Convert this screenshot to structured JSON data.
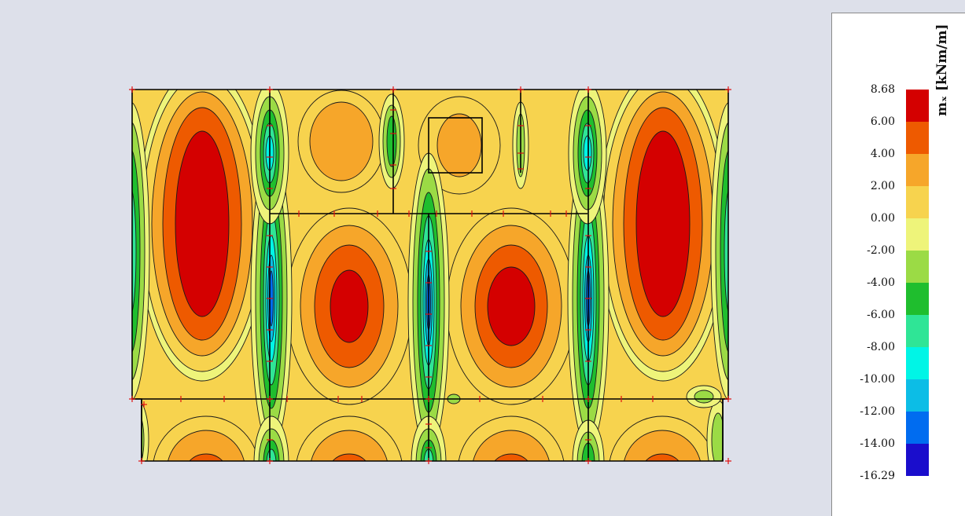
{
  "chart_data": {
    "type": "heatmap",
    "title": "",
    "legend": {
      "quantity": "mₓ [kNm/m]",
      "placement": "right",
      "tick_labels": [
        "8.68",
        "6.00",
        "4.00",
        "2.00",
        "0.00",
        "-2.00",
        "-4.00",
        "-6.00",
        "-8.00",
        "-10.00",
        "-12.00",
        "-14.00",
        "-16.29"
      ],
      "bands": [
        {
          "from": 6.0,
          "to": 8.68,
          "color": "#d40000"
        },
        {
          "from": 4.0,
          "to": 6.0,
          "color": "#ee5a00"
        },
        {
          "from": 2.0,
          "to": 4.0,
          "color": "#f6a62a"
        },
        {
          "from": 0.0,
          "to": 2.0,
          "color": "#f7d34e"
        },
        {
          "from": -2.0,
          "to": 0.0,
          "color": "#eef47a"
        },
        {
          "from": -4.0,
          "to": -2.0,
          "color": "#9bdb45"
        },
        {
          "from": -6.0,
          "to": -4.0,
          "color": "#1fbe2e"
        },
        {
          "from": -8.0,
          "to": -6.0,
          "color": "#2fe596"
        },
        {
          "from": -10.0,
          "to": -8.0,
          "color": "#00f5e6"
        },
        {
          "from": -12.0,
          "to": -10.0,
          "color": "#0cbde6"
        },
        {
          "from": -14.0,
          "to": -12.0,
          "color": "#006cf0"
        },
        {
          "from": -16.29,
          "to": -14.0,
          "color": "#1a0dcc"
        }
      ]
    },
    "extremes": {
      "max": 8.68,
      "min": -16.29
    }
  }
}
